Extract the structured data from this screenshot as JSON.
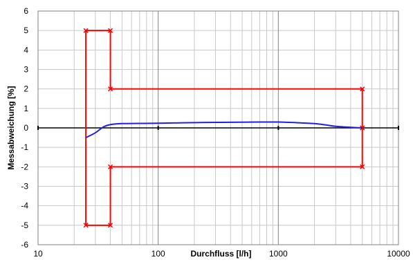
{
  "chart_data": {
    "type": "line",
    "xscale": "log",
    "xlim": [
      10,
      10000
    ],
    "ylim": [
      -6,
      6
    ],
    "xlabel": "Durchfluss [l/h]",
    "ylabel": "Messabweichung [%]",
    "xticks": [
      "10",
      "100",
      "1000",
      "10000"
    ],
    "yticks": [
      "-6",
      "-5",
      "-4",
      "-3",
      "-2",
      "-1",
      "0",
      "1",
      "2",
      "3",
      "4",
      "5",
      "6"
    ],
    "grid": true,
    "legend": "none",
    "colors": {
      "limits": "#ff0000",
      "error": "#2020e0",
      "grid": "#c8c8c8",
      "axis": "#000000"
    },
    "series": [
      {
        "role": "upper-limit",
        "color": "#ff0000",
        "markers": true,
        "x": [
          25,
          25,
          40,
          40,
          5000,
          5000
        ],
        "y": [
          -0.5,
          5,
          5,
          2,
          2,
          0
        ]
      },
      {
        "role": "lower-limit",
        "color": "#ff0000",
        "markers": true,
        "x": [
          25,
          25,
          40,
          40,
          5000,
          5000
        ],
        "y": [
          -0.5,
          -5,
          -5,
          -2,
          -2,
          0
        ]
      },
      {
        "role": "measurement",
        "color": "#2020e0",
        "markers": false,
        "x": [
          25,
          30,
          35,
          40,
          50,
          70,
          100,
          200,
          400,
          700,
          1000,
          1500,
          2000,
          2500,
          3000,
          4000,
          5000
        ],
        "y": [
          -0.5,
          -0.25,
          0.05,
          0.17,
          0.22,
          0.23,
          0.24,
          0.27,
          0.29,
          0.3,
          0.3,
          0.26,
          0.22,
          0.15,
          0.08,
          0.03,
          0.0
        ]
      }
    ]
  }
}
